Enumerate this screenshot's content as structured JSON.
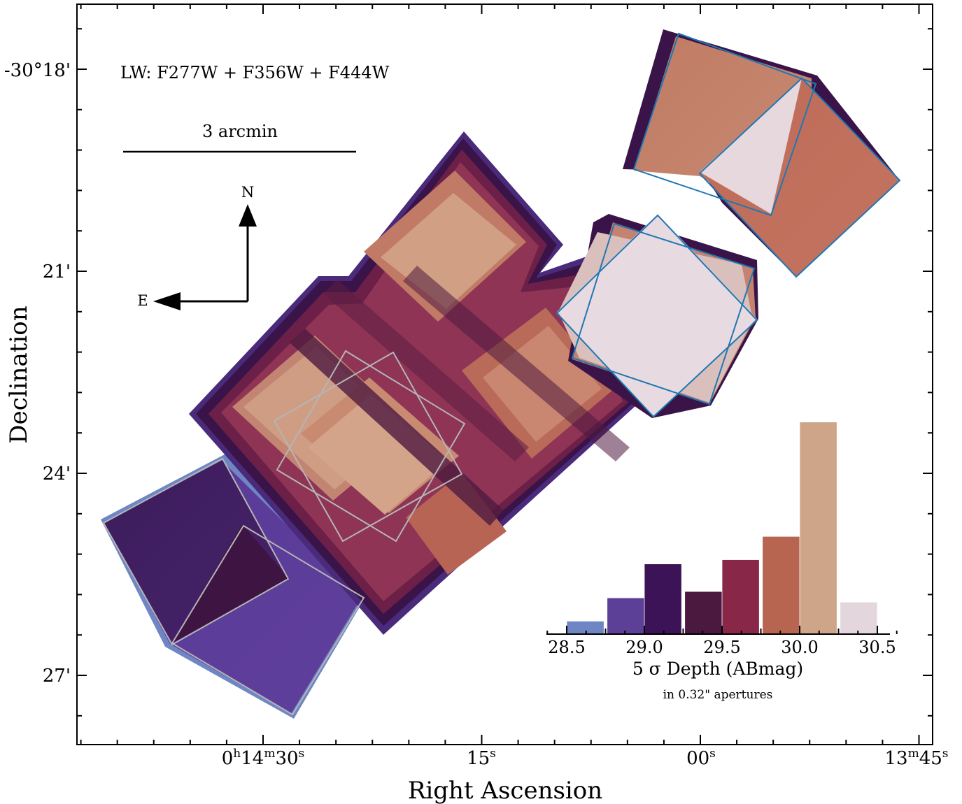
{
  "chart_data": [
    {
      "type": "image",
      "subject": "mosaic-coverage-map",
      "title": "",
      "xlabel": "Right Ascension",
      "ylabel": "Declination",
      "x_ticks": [
        {
          "base": "0",
          "sup1": "h",
          "mid": "14",
          "sup2": "m",
          "tail": "30",
          "sup3": "s"
        },
        {
          "base": "15",
          "sup1": "s"
        },
        {
          "base": "00",
          "sup1": "s"
        },
        {
          "base": "13",
          "sup1": "m",
          "mid": "45",
          "sup2": "s"
        }
      ],
      "y_ticks": [
        "-30°18'",
        "21'",
        "24'",
        "27'"
      ],
      "annotations": {
        "filter_label": "LW: F277W + F356W + F444W",
        "scale_bar_label": "3 arcmin",
        "compass_north": "N",
        "compass_east": "E"
      },
      "colors": {
        "outline_gray": "#b3b3b3",
        "outline_blue": "#1f77b4",
        "deep_purple": "#3b1452",
        "maroon": "#6e2048",
        "rose": "#9a4060",
        "salmon": "#c2745c",
        "tan": "#cfa58a",
        "pale": "#e6d6dc",
        "periwinkle": "#6f86c4",
        "violet": "#5c3f96"
      }
    },
    {
      "type": "bar",
      "title": "",
      "xlabel": "5 σ Depth (ABmag)",
      "subtitle": "in 0.32\" apertures",
      "ylabel": "",
      "x_ticks": [
        "28.5",
        "29.0",
        "29.5",
        "30.0",
        "30.5"
      ],
      "bin_centers": [
        28.62,
        28.88,
        29.12,
        29.38,
        29.62,
        29.88,
        30.12,
        30.38
      ],
      "values": [
        0.06,
        0.17,
        0.33,
        0.2,
        0.35,
        0.46,
        1.0,
        0.15
      ],
      "colors": [
        "#6f86c4",
        "#5c3f96",
        "#3c1357",
        "#4b1840",
        "#892748",
        "#b76451",
        "#cfa58a",
        "#e3d6dd"
      ]
    }
  ]
}
